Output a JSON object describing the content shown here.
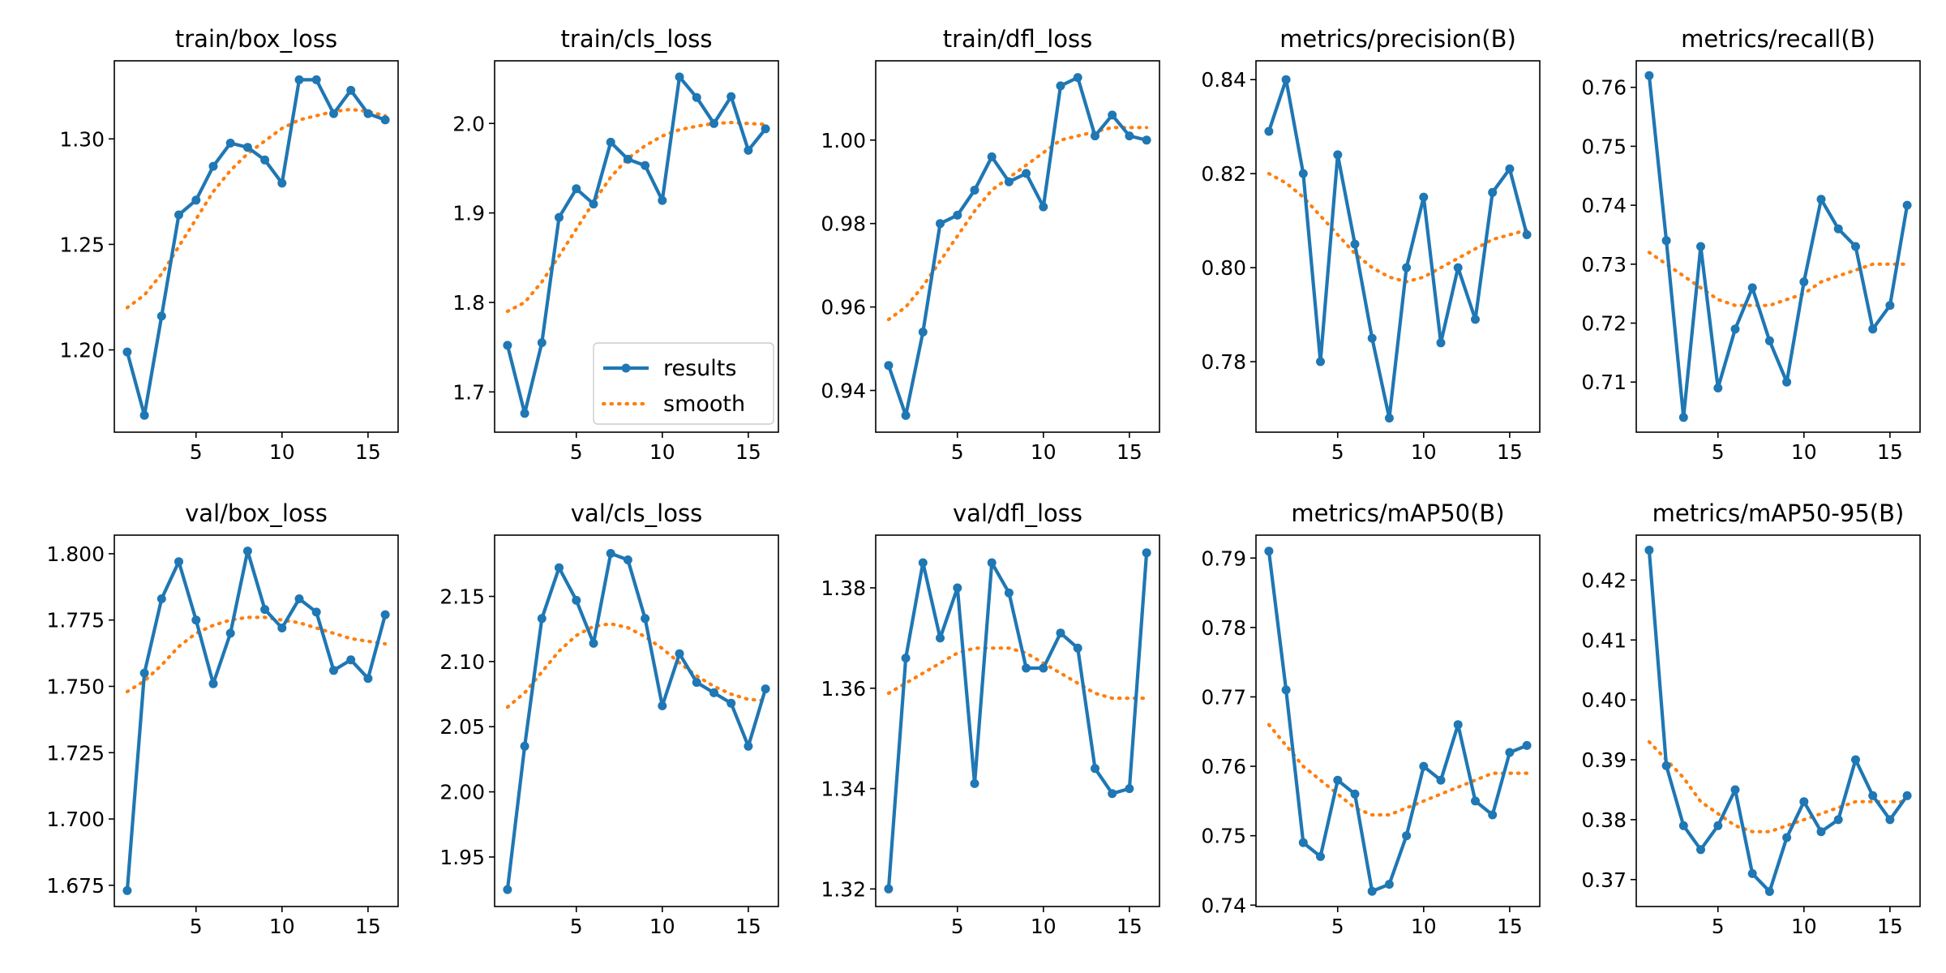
{
  "colors": {
    "results": "#1f77b4",
    "smooth": "#ff7f0e",
    "axes": "#000000",
    "background": "#ffffff",
    "legend_frame": "#cccccc"
  },
  "legend": {
    "entries": [
      "results",
      "smooth"
    ],
    "placement": "lower-right of panel train/cls_loss"
  },
  "chart_data": [
    {
      "type": "line",
      "title": "train/box_loss",
      "x": [
        1,
        2,
        3,
        4,
        5,
        6,
        7,
        8,
        9,
        10,
        11,
        12,
        13,
        14,
        15,
        16
      ],
      "series": [
        {
          "name": "results",
          "values": [
            1.199,
            1.169,
            1.216,
            1.264,
            1.271,
            1.287,
            1.298,
            1.296,
            1.29,
            1.279,
            1.328,
            1.328,
            1.312,
            1.323,
            1.312,
            1.309
          ]
        },
        {
          "name": "smooth",
          "values": [
            1.22,
            1.226,
            1.236,
            1.249,
            1.262,
            1.275,
            1.285,
            1.293,
            1.299,
            1.305,
            1.309,
            1.311,
            1.313,
            1.314,
            1.313,
            1.311
          ]
        }
      ],
      "xlim": [
        0.25,
        16.75
      ],
      "ylim": [
        1.161,
        1.337
      ],
      "xticks": [
        5,
        10,
        15
      ],
      "yticks": [
        1.2,
        1.25,
        1.3
      ],
      "ytick_labels": [
        "1.20",
        "1.25",
        "1.30"
      ],
      "legend": false
    },
    {
      "type": "line",
      "title": "train/cls_loss",
      "x": [
        1,
        2,
        3,
        4,
        5,
        6,
        7,
        8,
        9,
        10,
        11,
        12,
        13,
        14,
        15,
        16
      ],
      "series": [
        {
          "name": "results",
          "values": [
            1.752,
            1.676,
            1.755,
            1.895,
            1.927,
            1.91,
            1.979,
            1.96,
            1.953,
            1.914,
            2.052,
            2.029,
            2.0,
            2.03,
            1.97,
            1.994
          ]
        },
        {
          "name": "smooth",
          "values": [
            1.79,
            1.8,
            1.823,
            1.852,
            1.882,
            1.912,
            1.94,
            1.961,
            1.975,
            1.986,
            1.993,
            1.997,
            2.0,
            2.001,
            2.0,
            1.999
          ]
        }
      ],
      "xlim": [
        0.25,
        16.75
      ],
      "ylim": [
        1.655,
        2.07
      ],
      "xticks": [
        5,
        10,
        15
      ],
      "yticks": [
        1.7,
        1.8,
        1.9,
        2.0
      ],
      "ytick_labels": [
        "1.7",
        "1.8",
        "1.9",
        "2.0"
      ],
      "legend": true
    },
    {
      "type": "line",
      "title": "train/dfl_loss",
      "x": [
        1,
        2,
        3,
        4,
        5,
        6,
        7,
        8,
        9,
        10,
        11,
        12,
        13,
        14,
        15,
        16
      ],
      "series": [
        {
          "name": "results",
          "values": [
            0.946,
            0.934,
            0.954,
            0.98,
            0.982,
            0.988,
            0.996,
            0.99,
            0.992,
            0.984,
            1.013,
            1.015,
            1.001,
            1.006,
            1.001,
            1.0
          ]
        },
        {
          "name": "smooth",
          "values": [
            0.957,
            0.96,
            0.965,
            0.971,
            0.977,
            0.983,
            0.988,
            0.991,
            0.994,
            0.997,
            1.0,
            1.001,
            1.002,
            1.003,
            1.003,
            1.003
          ]
        }
      ],
      "xlim": [
        0.25,
        16.75
      ],
      "ylim": [
        0.93,
        1.019
      ],
      "xticks": [
        5,
        10,
        15
      ],
      "yticks": [
        0.94,
        0.96,
        0.98,
        1.0
      ],
      "ytick_labels": [
        "0.94",
        "0.96",
        "0.98",
        "1.00"
      ],
      "legend": false
    },
    {
      "type": "line",
      "title": "metrics/precision(B)",
      "x": [
        1,
        2,
        3,
        4,
        5,
        6,
        7,
        8,
        9,
        10,
        11,
        12,
        13,
        14,
        15,
        16
      ],
      "series": [
        {
          "name": "results",
          "values": [
            0.829,
            0.84,
            0.82,
            0.78,
            0.824,
            0.805,
            0.785,
            0.768,
            0.8,
            0.815,
            0.784,
            0.8,
            0.789,
            0.816,
            0.821,
            0.807
          ]
        },
        {
          "name": "smooth",
          "values": [
            0.82,
            0.818,
            0.815,
            0.811,
            0.807,
            0.803,
            0.8,
            0.798,
            0.797,
            0.798,
            0.8,
            0.802,
            0.804,
            0.806,
            0.807,
            0.808
          ]
        }
      ],
      "xlim": [
        0.25,
        16.75
      ],
      "ylim": [
        0.765,
        0.844
      ],
      "xticks": [
        5,
        10,
        15
      ],
      "yticks": [
        0.78,
        0.8,
        0.82,
        0.84
      ],
      "ytick_labels": [
        "0.78",
        "0.80",
        "0.82",
        "0.84"
      ],
      "legend": false
    },
    {
      "type": "line",
      "title": "metrics/recall(B)",
      "x": [
        1,
        2,
        3,
        4,
        5,
        6,
        7,
        8,
        9,
        10,
        11,
        12,
        13,
        14,
        15,
        16
      ],
      "series": [
        {
          "name": "results",
          "values": [
            0.762,
            0.734,
            0.704,
            0.733,
            0.709,
            0.719,
            0.726,
            0.717,
            0.71,
            0.727,
            0.741,
            0.736,
            0.733,
            0.719,
            0.723,
            0.74
          ]
        },
        {
          "name": "smooth",
          "values": [
            0.732,
            0.73,
            0.728,
            0.726,
            0.724,
            0.723,
            0.723,
            0.723,
            0.724,
            0.725,
            0.727,
            0.728,
            0.729,
            0.73,
            0.73,
            0.73
          ]
        }
      ],
      "xlim": [
        0.25,
        16.75
      ],
      "ylim": [
        0.7015,
        0.7645
      ],
      "xticks": [
        5,
        10,
        15
      ],
      "yticks": [
        0.71,
        0.72,
        0.73,
        0.74,
        0.75,
        0.76
      ],
      "ytick_labels": [
        "0.71",
        "0.72",
        "0.73",
        "0.74",
        "0.75",
        "0.76"
      ],
      "legend": false
    },
    {
      "type": "line",
      "title": "val/box_loss",
      "x": [
        1,
        2,
        3,
        4,
        5,
        6,
        7,
        8,
        9,
        10,
        11,
        12,
        13,
        14,
        15,
        16
      ],
      "series": [
        {
          "name": "results",
          "values": [
            1.673,
            1.755,
            1.783,
            1.797,
            1.775,
            1.751,
            1.77,
            1.801,
            1.779,
            1.772,
            1.783,
            1.778,
            1.756,
            1.76,
            1.753,
            1.777
          ]
        },
        {
          "name": "smooth",
          "values": [
            1.748,
            1.752,
            1.758,
            1.765,
            1.77,
            1.773,
            1.775,
            1.776,
            1.776,
            1.775,
            1.774,
            1.772,
            1.77,
            1.768,
            1.767,
            1.766
          ]
        }
      ],
      "xlim": [
        0.25,
        16.75
      ],
      "ylim": [
        1.667,
        1.807
      ],
      "xticks": [
        5,
        10,
        15
      ],
      "yticks": [
        1.675,
        1.7,
        1.725,
        1.75,
        1.775,
        1.8
      ],
      "ytick_labels": [
        "1.675",
        "1.700",
        "1.725",
        "1.750",
        "1.775",
        "1.800"
      ],
      "legend": false
    },
    {
      "type": "line",
      "title": "val/cls_loss",
      "x": [
        1,
        2,
        3,
        4,
        5,
        6,
        7,
        8,
        9,
        10,
        11,
        12,
        13,
        14,
        15,
        16
      ],
      "series": [
        {
          "name": "results",
          "values": [
            1.925,
            2.035,
            2.133,
            2.172,
            2.147,
            2.114,
            2.183,
            2.178,
            2.133,
            2.066,
            2.106,
            2.084,
            2.076,
            2.068,
            2.035,
            2.079
          ]
        },
        {
          "name": "smooth",
          "values": [
            2.065,
            2.076,
            2.092,
            2.108,
            2.12,
            2.127,
            2.129,
            2.126,
            2.119,
            2.11,
            2.099,
            2.089,
            2.081,
            2.075,
            2.071,
            2.07
          ]
        }
      ],
      "xlim": [
        0.25,
        16.75
      ],
      "ylim": [
        1.912,
        2.197
      ],
      "xticks": [
        5,
        10,
        15
      ],
      "yticks": [
        1.95,
        2.0,
        2.05,
        2.1,
        2.15
      ],
      "ytick_labels": [
        "1.95",
        "2.00",
        "2.05",
        "2.10",
        "2.15"
      ],
      "legend": false
    },
    {
      "type": "line",
      "title": "val/dfl_loss",
      "x": [
        1,
        2,
        3,
        4,
        5,
        6,
        7,
        8,
        9,
        10,
        11,
        12,
        13,
        14,
        15,
        16
      ],
      "series": [
        {
          "name": "results",
          "values": [
            1.32,
            1.366,
            1.385,
            1.37,
            1.38,
            1.341,
            1.385,
            1.379,
            1.364,
            1.364,
            1.371,
            1.368,
            1.344,
            1.339,
            1.34,
            1.387
          ]
        },
        {
          "name": "smooth",
          "values": [
            1.359,
            1.361,
            1.363,
            1.365,
            1.367,
            1.368,
            1.368,
            1.368,
            1.367,
            1.365,
            1.363,
            1.361,
            1.359,
            1.358,
            1.358,
            1.358
          ]
        }
      ],
      "xlim": [
        0.25,
        16.75
      ],
      "ylim": [
        1.3165,
        1.3905
      ],
      "xticks": [
        5,
        10,
        15
      ],
      "yticks": [
        1.32,
        1.34,
        1.36,
        1.38
      ],
      "ytick_labels": [
        "1.32",
        "1.34",
        "1.36",
        "1.38"
      ],
      "legend": false
    },
    {
      "type": "line",
      "title": "metrics/mAP50(B)",
      "x": [
        1,
        2,
        3,
        4,
        5,
        6,
        7,
        8,
        9,
        10,
        11,
        12,
        13,
        14,
        15,
        16
      ],
      "series": [
        {
          "name": "results",
          "values": [
            0.791,
            0.771,
            0.749,
            0.747,
            0.758,
            0.756,
            0.742,
            0.743,
            0.75,
            0.76,
            0.758,
            0.766,
            0.755,
            0.753,
            0.762,
            0.763
          ]
        },
        {
          "name": "smooth",
          "values": [
            0.766,
            0.763,
            0.76,
            0.758,
            0.756,
            0.754,
            0.753,
            0.753,
            0.754,
            0.755,
            0.756,
            0.757,
            0.758,
            0.759,
            0.759,
            0.759
          ]
        }
      ],
      "xlim": [
        0.25,
        16.75
      ],
      "ylim": [
        0.7398,
        0.7933
      ],
      "xticks": [
        5,
        10,
        15
      ],
      "yticks": [
        0.74,
        0.75,
        0.76,
        0.77,
        0.78,
        0.79
      ],
      "ytick_labels": [
        "0.74",
        "0.75",
        "0.76",
        "0.77",
        "0.78",
        "0.79"
      ],
      "legend": false
    },
    {
      "type": "line",
      "title": "metrics/mAP50-95(B)",
      "x": [
        1,
        2,
        3,
        4,
        5,
        6,
        7,
        8,
        9,
        10,
        11,
        12,
        13,
        14,
        15,
        16
      ],
      "series": [
        {
          "name": "results",
          "values": [
            0.425,
            0.389,
            0.379,
            0.375,
            0.379,
            0.385,
            0.371,
            0.368,
            0.377,
            0.383,
            0.378,
            0.38,
            0.39,
            0.384,
            0.38,
            0.384
          ]
        },
        {
          "name": "smooth",
          "values": [
            0.393,
            0.39,
            0.387,
            0.383,
            0.381,
            0.379,
            0.378,
            0.378,
            0.379,
            0.38,
            0.381,
            0.382,
            0.383,
            0.383,
            0.383,
            0.383
          ]
        }
      ],
      "xlim": [
        0.25,
        16.75
      ],
      "ylim": [
        0.3655,
        0.4275
      ],
      "xticks": [
        5,
        10,
        15
      ],
      "yticks": [
        0.37,
        0.38,
        0.39,
        0.4,
        0.41,
        0.42
      ],
      "ytick_labels": [
        "0.37",
        "0.38",
        "0.39",
        "0.40",
        "0.41",
        "0.42"
      ],
      "legend": false
    }
  ]
}
